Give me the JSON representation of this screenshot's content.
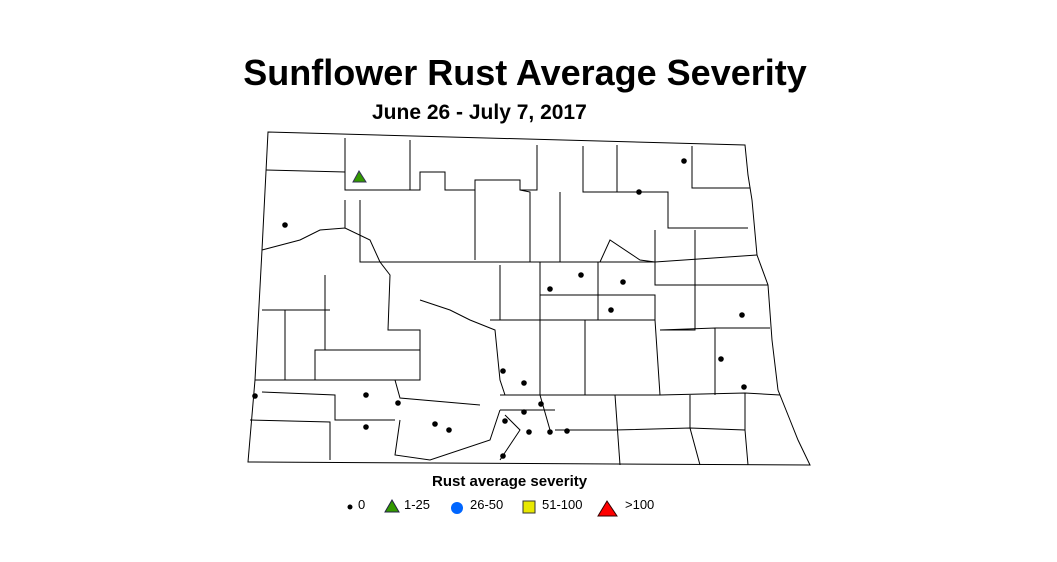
{
  "title": "Sunflower Rust Average Severity",
  "subtitle": "June 26 - July 7, 2017",
  "legend": {
    "title": "Rust average severity",
    "items": [
      {
        "label": "0",
        "shape": "dot",
        "color": "#000000"
      },
      {
        "label": "1-25",
        "shape": "triangle",
        "color": "#339900"
      },
      {
        "label": "26-50",
        "shape": "circle",
        "color": "#0066ff"
      },
      {
        "label": "51-100",
        "shape": "square",
        "color": "#e8e800"
      },
      {
        "label": ">100",
        "shape": "triangle",
        "color": "#ff0000"
      }
    ]
  },
  "sites": {
    "severity_0_count": 25,
    "severity_1_25_count": 1
  }
}
